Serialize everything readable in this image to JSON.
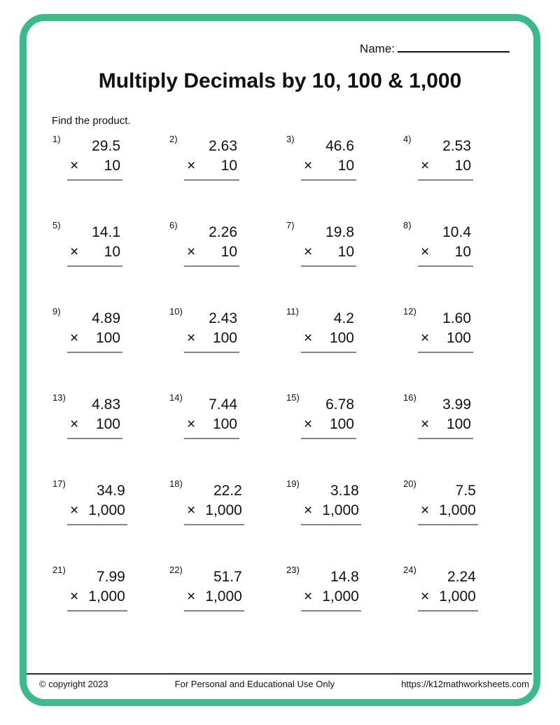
{
  "page": {
    "border_color": "#3eb98c",
    "answer_line_color": "#858585"
  },
  "header": {
    "name_label": "Name:",
    "title": "Multiply Decimals by 10, 100 & 1,000",
    "instruction": "Find the product."
  },
  "problems": [
    {
      "num": "1)",
      "operand": "29.5",
      "times": "×",
      "multiplier": "10"
    },
    {
      "num": "2)",
      "operand": "2.63",
      "times": "×",
      "multiplier": "10"
    },
    {
      "num": "3)",
      "operand": "46.6",
      "times": "×",
      "multiplier": "10"
    },
    {
      "num": "4)",
      "operand": "2.53",
      "times": "×",
      "multiplier": "10"
    },
    {
      "num": "5)",
      "operand": "14.1",
      "times": "×",
      "multiplier": "10"
    },
    {
      "num": "6)",
      "operand": "2.26",
      "times": "×",
      "multiplier": "10"
    },
    {
      "num": "7)",
      "operand": "19.8",
      "times": "×",
      "multiplier": "10"
    },
    {
      "num": "8)",
      "operand": "10.4",
      "times": "×",
      "multiplier": "10"
    },
    {
      "num": "9)",
      "operand": "4.89",
      "times": "×",
      "multiplier": "100"
    },
    {
      "num": "10)",
      "operand": "2.43",
      "times": "×",
      "multiplier": "100"
    },
    {
      "num": "11)",
      "operand": "4.2",
      "times": "×",
      "multiplier": "100"
    },
    {
      "num": "12)",
      "operand": "1.60",
      "times": "×",
      "multiplier": "100"
    },
    {
      "num": "13)",
      "operand": "4.83",
      "times": "×",
      "multiplier": "100"
    },
    {
      "num": "14)",
      "operand": "7.44",
      "times": "×",
      "multiplier": "100"
    },
    {
      "num": "15)",
      "operand": "6.78",
      "times": "×",
      "multiplier": "100"
    },
    {
      "num": "16)",
      "operand": "3.99",
      "times": "×",
      "multiplier": "100"
    },
    {
      "num": "17)",
      "operand": "34.9",
      "times": "×",
      "multiplier": "1,000"
    },
    {
      "num": "18)",
      "operand": "22.2",
      "times": "×",
      "multiplier": "1,000"
    },
    {
      "num": "19)",
      "operand": "3.18",
      "times": "×",
      "multiplier": "1,000"
    },
    {
      "num": "20)",
      "operand": "7.5",
      "times": "×",
      "multiplier": "1,000"
    },
    {
      "num": "21)",
      "operand": "7.99",
      "times": "×",
      "multiplier": "1,000"
    },
    {
      "num": "22)",
      "operand": "51.7",
      "times": "×",
      "multiplier": "1,000"
    },
    {
      "num": "23)",
      "operand": "14.8",
      "times": "×",
      "multiplier": "1,000"
    },
    {
      "num": "24)",
      "operand": "2.24",
      "times": "×",
      "multiplier": "1,000"
    }
  ],
  "footer": {
    "copyright": "© copyright 2023",
    "usage": "For Personal and Educational Use Only",
    "url": "https://k12mathworksheets.com"
  }
}
